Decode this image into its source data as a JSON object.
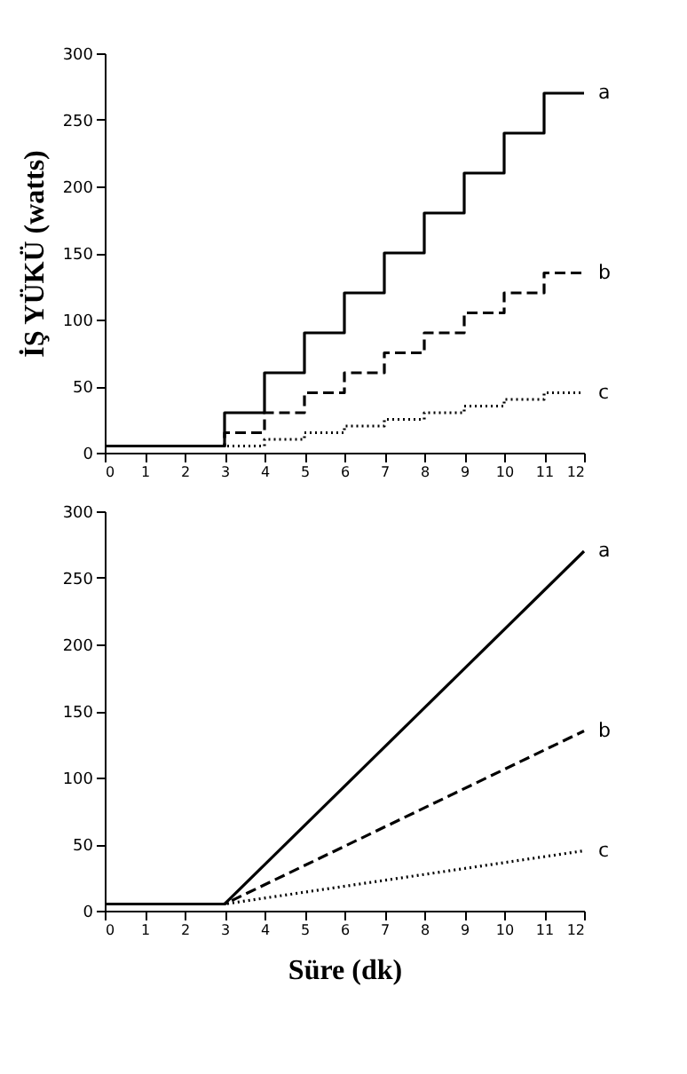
{
  "chart_data": [
    {
      "type": "step",
      "ylabel": "İŞ YÜKÜ (watts)",
      "xlim": [
        0,
        12
      ],
      "xticks": [
        0,
        1,
        2,
        3,
        4,
        5,
        6,
        7,
        8,
        9,
        10,
        11,
        12
      ],
      "ylim": [
        0,
        300
      ],
      "yticks": [
        0,
        50,
        100,
        150,
        200,
        250,
        300
      ],
      "grid": false,
      "marker": "none",
      "x": [
        0,
        3,
        4,
        5,
        6,
        7,
        8,
        9,
        10,
        11,
        12
      ],
      "series": [
        {
          "name": "a",
          "color": "#000000",
          "line_style": "solid",
          "values": [
            5,
            30,
            60,
            90,
            120,
            150,
            180,
            210,
            240,
            270,
            270
          ]
        },
        {
          "name": "b",
          "color": "#000000",
          "line_style": "dashed",
          "values": [
            5,
            15,
            30,
            45,
            60,
            75,
            90,
            105,
            120,
            135,
            135
          ]
        },
        {
          "name": "c",
          "color": "#000000",
          "line_style": "dotted",
          "values": [
            5,
            5,
            10,
            15,
            20,
            25,
            30,
            35,
            40,
            45,
            45
          ]
        }
      ]
    },
    {
      "type": "line",
      "xlabel": "Süre (dk)",
      "xlim": [
        0,
        12
      ],
      "xticks": [
        0,
        1,
        2,
        3,
        4,
        5,
        6,
        7,
        8,
        9,
        10,
        11,
        12
      ],
      "ylim": [
        0,
        300
      ],
      "yticks": [
        0,
        50,
        100,
        150,
        200,
        250,
        300
      ],
      "grid": false,
      "marker": "none",
      "x": [
        0,
        3,
        12
      ],
      "series": [
        {
          "name": "a",
          "color": "#000000",
          "line_style": "solid",
          "values": [
            5,
            5,
            270
          ]
        },
        {
          "name": "b",
          "color": "#000000",
          "line_style": "dashed",
          "values": [
            5,
            5,
            135
          ]
        },
        {
          "name": "c",
          "color": "#000000",
          "line_style": "dotted",
          "values": [
            5,
            5,
            45
          ]
        }
      ]
    }
  ]
}
